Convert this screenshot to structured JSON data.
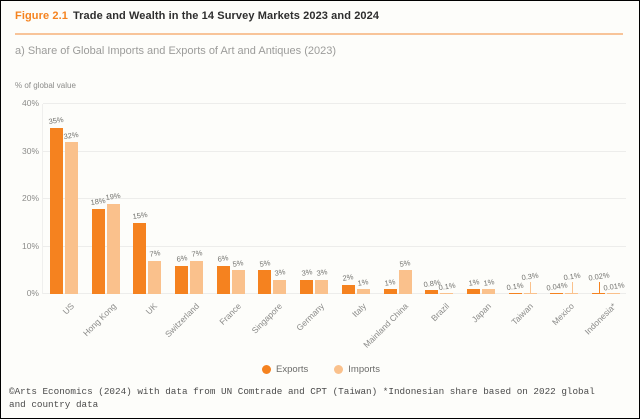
{
  "header": {
    "figure_label": "Figure 2.1",
    "title": "Trade and Wealth in the 14 Survey Markets 2023 and 2024"
  },
  "subtitle": "a) Share of Global Imports and Exports of Art and Antiques (2023)",
  "chart_data": {
    "type": "bar",
    "title": "a) Share of Global Imports and Exports of Art and Antiques (2023)",
    "axis_title": "% of global value",
    "ylabel": "% of global value",
    "ylim": [
      0,
      40
    ],
    "yticks": [
      "0%",
      "10%",
      "20%",
      "30%",
      "40%"
    ],
    "grid": "horizontal",
    "legend_position": "bottom-center",
    "series_names": [
      "Exports",
      "Imports"
    ],
    "colors": {
      "exports": "#F5821F",
      "imports": "#FAC18C"
    },
    "markets": [
      {
        "name": "US",
        "export": 35,
        "import": 32,
        "export_label": "35%",
        "import_label": "32%"
      },
      {
        "name": "Hong Kong",
        "export": 18,
        "import": 19,
        "export_label": "18%",
        "import_label": "19%"
      },
      {
        "name": "UK",
        "export": 15,
        "import": 7,
        "export_label": "15%",
        "import_label": "7%"
      },
      {
        "name": "Switzerland",
        "export": 6,
        "import": 7,
        "export_label": "6%",
        "import_label": "7%"
      },
      {
        "name": "France",
        "export": 6,
        "import": 5,
        "export_label": "6%",
        "import_label": "5%"
      },
      {
        "name": "Singapore",
        "export": 5,
        "import": 3,
        "export_label": "5%",
        "import_label": "3%"
      },
      {
        "name": "Germany",
        "export": 3,
        "import": 3,
        "export_label": "3%",
        "import_label": "3%"
      },
      {
        "name": "Italy",
        "export": 2,
        "import": 1,
        "export_label": "2%",
        "import_label": "1%"
      },
      {
        "name": "Mainland China",
        "export": 1,
        "import": 5,
        "export_label": "1%",
        "import_label": "5%"
      },
      {
        "name": "Brazil",
        "export": 0.8,
        "import": 0.1,
        "export_label": "0.8%",
        "import_label": "0.1%"
      },
      {
        "name": "Japan",
        "export": 1,
        "import": 1,
        "export_label": "1%",
        "import_label": "1%"
      },
      {
        "name": "Taiwan",
        "export": 0.1,
        "import": 0.3,
        "export_label": "0.1%",
        "import_label": "0.3%",
        "raised_import": true
      },
      {
        "name": "Mexico",
        "export": 0.04,
        "import": 0.1,
        "export_label": "0.04%",
        "import_label": "0.1%",
        "raised_import": true
      },
      {
        "name": "Indonesia*",
        "export": 0.02,
        "import": 0.01,
        "export_label": "0.02%",
        "import_label": "0.01%",
        "raised_export": true
      }
    ]
  },
  "legend": [
    {
      "label": "Exports",
      "color": "#F5821F"
    },
    {
      "label": "Imports",
      "color": "#FAC18C"
    }
  ],
  "footer": "©Arts Economics (2024) with data from UN Comtrade and CPT (Taiwan) *Indonesian share based on 2022 global\nand country data"
}
